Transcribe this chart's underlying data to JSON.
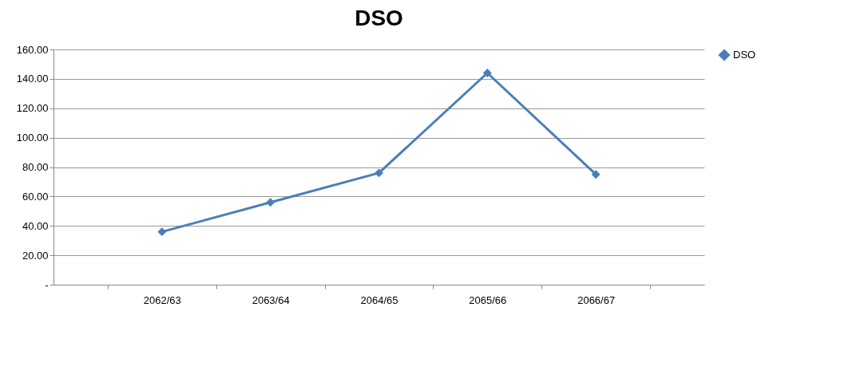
{
  "chart_data": {
    "type": "line",
    "title": "DSO",
    "categories": [
      "2062/63",
      "2063/64",
      "2064/65",
      "2065/66",
      "2066/67"
    ],
    "series": [
      {
        "name": "DSO",
        "color": "#4a7ebb",
        "values": [
          36,
          56,
          76,
          144,
          75
        ]
      }
    ],
    "ylim": [
      0,
      160
    ],
    "yticks": [
      {
        "value": 0,
        "label": "-"
      },
      {
        "value": 20,
        "label": "20.00"
      },
      {
        "value": 40,
        "label": "40.00"
      },
      {
        "value": 60,
        "label": "60.00"
      },
      {
        "value": 80,
        "label": "80.00"
      },
      {
        "value": 100,
        "label": "100.00"
      },
      {
        "value": 120,
        "label": "120.00"
      },
      {
        "value": 140,
        "label": "140.00"
      },
      {
        "value": 160,
        "label": "160.00"
      }
    ],
    "grid": "y",
    "legend": "right",
    "marker": "diamond",
    "line_style": "solid"
  }
}
